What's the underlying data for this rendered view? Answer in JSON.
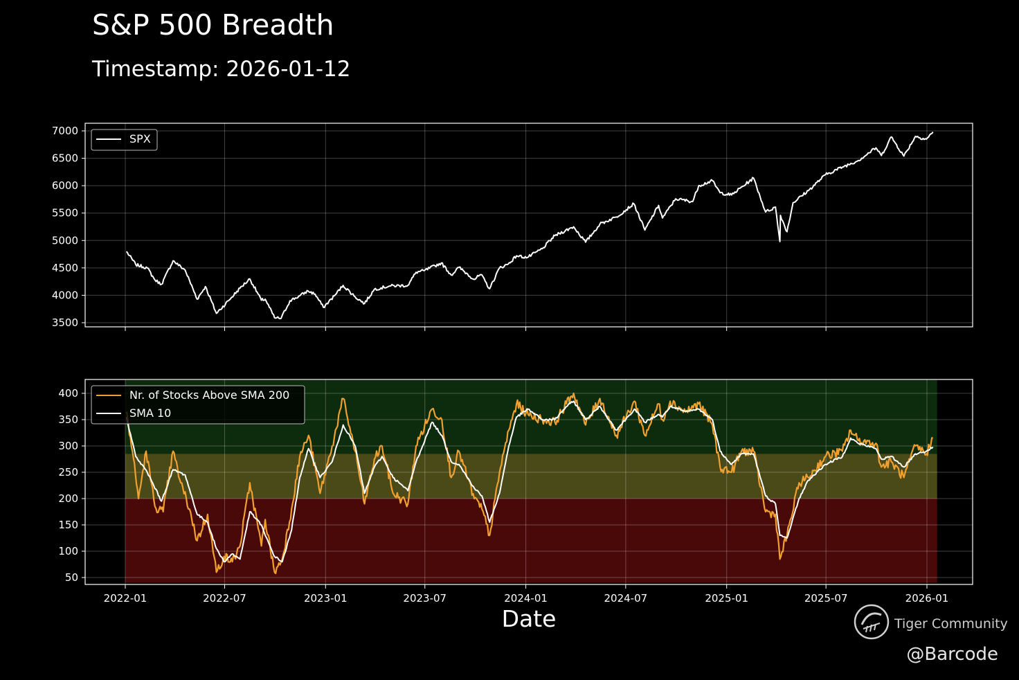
{
  "title": "S&P 500 Breadth",
  "subtitle": "Timestamp: 2026-01-12",
  "watermark": "Tiger Community",
  "handle": "@Barcode",
  "colors": {
    "background": "#000000",
    "spx_line": "#ffffff",
    "breadth_line": "#f0a030",
    "sma_line": "#ffffff",
    "zone_green": "#0d2b0d",
    "zone_yellow": "#4a4a18",
    "zone_red": "#4a0909"
  },
  "chart_data": [
    {
      "type": "line",
      "title": "",
      "xlabel": "",
      "ylabel": "",
      "ylim": [
        3450,
        7000
      ],
      "yticks": [
        3500,
        4000,
        4500,
        5000,
        5500,
        6000,
        6500,
        7000
      ],
      "xticks": [
        "2022-01",
        "2022-07",
        "2023-01",
        "2023-07",
        "2024-01",
        "2024-07",
        "2025-01",
        "2025-07",
        "2026-01"
      ],
      "grid": true,
      "legend": "top-left",
      "series": [
        {
          "name": "SPX",
          "color": "#ffffff",
          "points": [
            [
              "2022-01-03",
              4800
            ],
            [
              "2022-01-20",
              4560
            ],
            [
              "2022-02-10",
              4500
            ],
            [
              "2022-02-24",
              4280
            ],
            [
              "2022-03-08",
              4200
            ],
            [
              "2022-03-29",
              4630
            ],
            [
              "2022-04-20",
              4460
            ],
            [
              "2022-05-12",
              3930
            ],
            [
              "2022-05-27",
              4160
            ],
            [
              "2022-06-16",
              3670
            ],
            [
              "2022-07-08",
              3900
            ],
            [
              "2022-07-29",
              4130
            ],
            [
              "2022-08-16",
              4300
            ],
            [
              "2022-09-06",
              3910
            ],
            [
              "2022-09-13",
              3930
            ],
            [
              "2022-09-30",
              3590
            ],
            [
              "2022-10-12",
              3580
            ],
            [
              "2022-10-28",
              3900
            ],
            [
              "2022-11-15",
              3990
            ],
            [
              "2022-11-30",
              4080
            ],
            [
              "2022-12-13",
              4020
            ],
            [
              "2022-12-28",
              3780
            ],
            [
              "2023-01-17",
              3990
            ],
            [
              "2023-02-02",
              4180
            ],
            [
              "2023-02-24",
              3970
            ],
            [
              "2023-03-13",
              3850
            ],
            [
              "2023-03-31",
              4110
            ],
            [
              "2023-04-28",
              4170
            ],
            [
              "2023-05-31",
              4180
            ],
            [
              "2023-06-15",
              4420
            ],
            [
              "2023-06-30",
              4450
            ],
            [
              "2023-07-31",
              4590
            ],
            [
              "2023-08-18",
              4370
            ],
            [
              "2023-09-01",
              4510
            ],
            [
              "2023-09-29",
              4290
            ],
            [
              "2023-10-11",
              4380
            ],
            [
              "2023-10-27",
              4120
            ],
            [
              "2023-11-14",
              4500
            ],
            [
              "2023-11-30",
              4570
            ],
            [
              "2023-12-15",
              4720
            ],
            [
              "2024-01-04",
              4690
            ],
            [
              "2024-01-31",
              4850
            ],
            [
              "2024-02-23",
              5090
            ],
            [
              "2024-03-28",
              5250
            ],
            [
              "2024-04-19",
              4970
            ],
            [
              "2024-05-15",
              5300
            ],
            [
              "2024-06-14",
              5430
            ],
            [
              "2024-07-16",
              5670
            ],
            [
              "2024-08-05",
              5190
            ],
            [
              "2024-08-30",
              5640
            ],
            [
              "2024-09-06",
              5410
            ],
            [
              "2024-09-30",
              5760
            ],
            [
              "2024-10-31",
              5710
            ],
            [
              "2024-11-11",
              6000
            ],
            [
              "2024-12-06",
              6090
            ],
            [
              "2024-12-20",
              5870
            ],
            [
              "2025-01-10",
              5830
            ],
            [
              "2025-02-19",
              6140
            ],
            [
              "2025-03-13",
              5520
            ],
            [
              "2025-03-31",
              5610
            ],
            [
              "2025-04-08",
              4980
            ],
            [
              "2025-04-09",
              5460
            ],
            [
              "2025-04-21",
              5160
            ],
            [
              "2025-05-02",
              5690
            ],
            [
              "2025-05-30",
              5910
            ],
            [
              "2025-06-30",
              6200
            ],
            [
              "2025-07-31",
              6340
            ],
            [
              "2025-08-29",
              6460
            ],
            [
              "2025-09-30",
              6690
            ],
            [
              "2025-10-10",
              6550
            ],
            [
              "2025-10-28",
              6890
            ],
            [
              "2025-11-20",
              6540
            ],
            [
              "2025-12-11",
              6900
            ],
            [
              "2025-12-31",
              6850
            ],
            [
              "2026-01-12",
              6980
            ]
          ]
        }
      ]
    },
    {
      "type": "line",
      "title": "",
      "xlabel": "Date",
      "ylabel": "",
      "ylim": [
        40,
        425
      ],
      "yticks": [
        50,
        100,
        150,
        200,
        250,
        300,
        350,
        400
      ],
      "xticks": [
        "2022-01",
        "2022-07",
        "2023-01",
        "2023-07",
        "2024-01",
        "2024-07",
        "2025-01",
        "2025-07",
        "2026-01"
      ],
      "grid": true,
      "legend": "top-left",
      "zones": [
        {
          "from": 285,
          "to": 425,
          "color": "#0d2b0d"
        },
        {
          "from": 200,
          "to": 285,
          "color": "#4a4a18"
        },
        {
          "from": 40,
          "to": 200,
          "color": "#4a0909"
        }
      ],
      "series": [
        {
          "name": "Nr. of Stocks Above SMA 200",
          "color": "#f0a030",
          "points": [
            [
              "2022-01-03",
              365
            ],
            [
              "2022-01-14",
              290
            ],
            [
              "2022-01-25",
              200
            ],
            [
              "2022-02-08",
              290
            ],
            [
              "2022-02-24",
              185
            ],
            [
              "2022-03-11",
              175
            ],
            [
              "2022-03-29",
              290
            ],
            [
              "2022-04-12",
              230
            ],
            [
              "2022-04-28",
              180
            ],
            [
              "2022-05-12",
              120
            ],
            [
              "2022-05-31",
              170
            ],
            [
              "2022-06-16",
              60
            ],
            [
              "2022-06-30",
              90
            ],
            [
              "2022-07-15",
              80
            ],
            [
              "2022-07-29",
              110
            ],
            [
              "2022-08-16",
              230
            ],
            [
              "2022-09-06",
              110
            ],
            [
              "2022-09-13",
              160
            ],
            [
              "2022-09-30",
              60
            ],
            [
              "2022-10-14",
              85
            ],
            [
              "2022-10-31",
              180
            ],
            [
              "2022-11-15",
              280
            ],
            [
              "2022-12-01",
              320
            ],
            [
              "2022-12-22",
              210
            ],
            [
              "2023-01-13",
              300
            ],
            [
              "2023-02-02",
              390
            ],
            [
              "2023-02-24",
              290
            ],
            [
              "2023-03-13",
              190
            ],
            [
              "2023-03-31",
              275
            ],
            [
              "2023-04-14",
              300
            ],
            [
              "2023-05-04",
              210
            ],
            [
              "2023-05-31",
              190
            ],
            [
              "2023-06-15",
              300
            ],
            [
              "2023-07-14",
              370
            ],
            [
              "2023-08-01",
              350
            ],
            [
              "2023-08-18",
              240
            ],
            [
              "2023-09-01",
              290
            ],
            [
              "2023-09-29",
              200
            ],
            [
              "2023-10-13",
              180
            ],
            [
              "2023-10-27",
              130
            ],
            [
              "2023-11-14",
              250
            ],
            [
              "2023-12-01",
              330
            ],
            [
              "2023-12-15",
              380
            ],
            [
              "2024-01-05",
              360
            ],
            [
              "2024-01-31",
              350
            ],
            [
              "2024-02-23",
              345
            ],
            [
              "2024-03-15",
              380
            ],
            [
              "2024-03-28",
              400
            ],
            [
              "2024-04-19",
              340
            ],
            [
              "2024-05-15",
              390
            ],
            [
              "2024-06-14",
              320
            ],
            [
              "2024-07-17",
              385
            ],
            [
              "2024-08-05",
              320
            ],
            [
              "2024-08-30",
              380
            ],
            [
              "2024-09-06",
              350
            ],
            [
              "2024-09-20",
              385
            ],
            [
              "2024-10-18",
              365
            ],
            [
              "2024-11-11",
              380
            ],
            [
              "2024-12-06",
              340
            ],
            [
              "2024-12-20",
              260
            ],
            [
              "2025-01-10",
              250
            ],
            [
              "2025-01-28",
              290
            ],
            [
              "2025-02-19",
              290
            ],
            [
              "2025-03-13",
              175
            ],
            [
              "2025-03-31",
              170
            ],
            [
              "2025-04-08",
              85
            ],
            [
              "2025-04-21",
              130
            ],
            [
              "2025-05-13",
              230
            ],
            [
              "2025-05-30",
              240
            ],
            [
              "2025-06-30",
              280
            ],
            [
              "2025-07-31",
              290
            ],
            [
              "2025-08-15",
              330
            ],
            [
              "2025-08-29",
              310
            ],
            [
              "2025-09-30",
              305
            ],
            [
              "2025-10-10",
              260
            ],
            [
              "2025-10-28",
              270
            ],
            [
              "2025-11-20",
              240
            ],
            [
              "2025-12-11",
              300
            ],
            [
              "2025-12-31",
              285
            ],
            [
              "2026-01-12",
              315
            ]
          ]
        },
        {
          "name": "SMA 10",
          "color": "#ffffff",
          "points": [
            [
              "2022-01-03",
              355
            ],
            [
              "2022-01-20",
              280
            ],
            [
              "2022-02-10",
              250
            ],
            [
              "2022-03-08",
              195
            ],
            [
              "2022-03-29",
              255
            ],
            [
              "2022-04-20",
              245
            ],
            [
              "2022-05-12",
              170
            ],
            [
              "2022-05-31",
              155
            ],
            [
              "2022-06-16",
              105
            ],
            [
              "2022-06-30",
              80
            ],
            [
              "2022-07-15",
              95
            ],
            [
              "2022-07-29",
              85
            ],
            [
              "2022-08-16",
              175
            ],
            [
              "2022-09-06",
              150
            ],
            [
              "2022-09-13",
              130
            ],
            [
              "2022-09-30",
              90
            ],
            [
              "2022-10-14",
              80
            ],
            [
              "2022-10-31",
              140
            ],
            [
              "2022-11-15",
              240
            ],
            [
              "2022-12-01",
              295
            ],
            [
              "2022-12-22",
              240
            ],
            [
              "2023-01-13",
              270
            ],
            [
              "2023-02-02",
              340
            ],
            [
              "2023-02-24",
              300
            ],
            [
              "2023-03-13",
              210
            ],
            [
              "2023-03-31",
              260
            ],
            [
              "2023-04-14",
              280
            ],
            [
              "2023-05-04",
              240
            ],
            [
              "2023-05-31",
              215
            ],
            [
              "2023-06-15",
              270
            ],
            [
              "2023-07-14",
              345
            ],
            [
              "2023-08-01",
              320
            ],
            [
              "2023-08-18",
              270
            ],
            [
              "2023-09-01",
              265
            ],
            [
              "2023-09-29",
              220
            ],
            [
              "2023-10-13",
              205
            ],
            [
              "2023-10-27",
              155
            ],
            [
              "2023-11-14",
              210
            ],
            [
              "2023-12-01",
              300
            ],
            [
              "2023-12-15",
              355
            ],
            [
              "2024-01-05",
              370
            ],
            [
              "2024-01-31",
              350
            ],
            [
              "2024-02-23",
              350
            ],
            [
              "2024-03-15",
              375
            ],
            [
              "2024-03-28",
              385
            ],
            [
              "2024-04-19",
              350
            ],
            [
              "2024-05-15",
              375
            ],
            [
              "2024-06-14",
              330
            ],
            [
              "2024-07-17",
              370
            ],
            [
              "2024-08-05",
              345
            ],
            [
              "2024-08-30",
              360
            ],
            [
              "2024-09-06",
              355
            ],
            [
              "2024-09-20",
              375
            ],
            [
              "2024-10-18",
              365
            ],
            [
              "2024-11-11",
              370
            ],
            [
              "2024-12-06",
              350
            ],
            [
              "2024-12-20",
              290
            ],
            [
              "2025-01-10",
              265
            ],
            [
              "2025-01-28",
              285
            ],
            [
              "2025-02-19",
              285
            ],
            [
              "2025-03-13",
              205
            ],
            [
              "2025-03-31",
              190
            ],
            [
              "2025-04-08",
              130
            ],
            [
              "2025-04-21",
              125
            ],
            [
              "2025-05-13",
              200
            ],
            [
              "2025-05-30",
              235
            ],
            [
              "2025-06-30",
              265
            ],
            [
              "2025-07-31",
              280
            ],
            [
              "2025-08-15",
              315
            ],
            [
              "2025-08-29",
              305
            ],
            [
              "2025-09-30",
              295
            ],
            [
              "2025-10-10",
              275
            ],
            [
              "2025-10-28",
              280
            ],
            [
              "2025-11-20",
              260
            ],
            [
              "2025-12-11",
              285
            ],
            [
              "2025-12-31",
              290
            ],
            [
              "2026-01-12",
              298
            ]
          ]
        }
      ]
    }
  ]
}
